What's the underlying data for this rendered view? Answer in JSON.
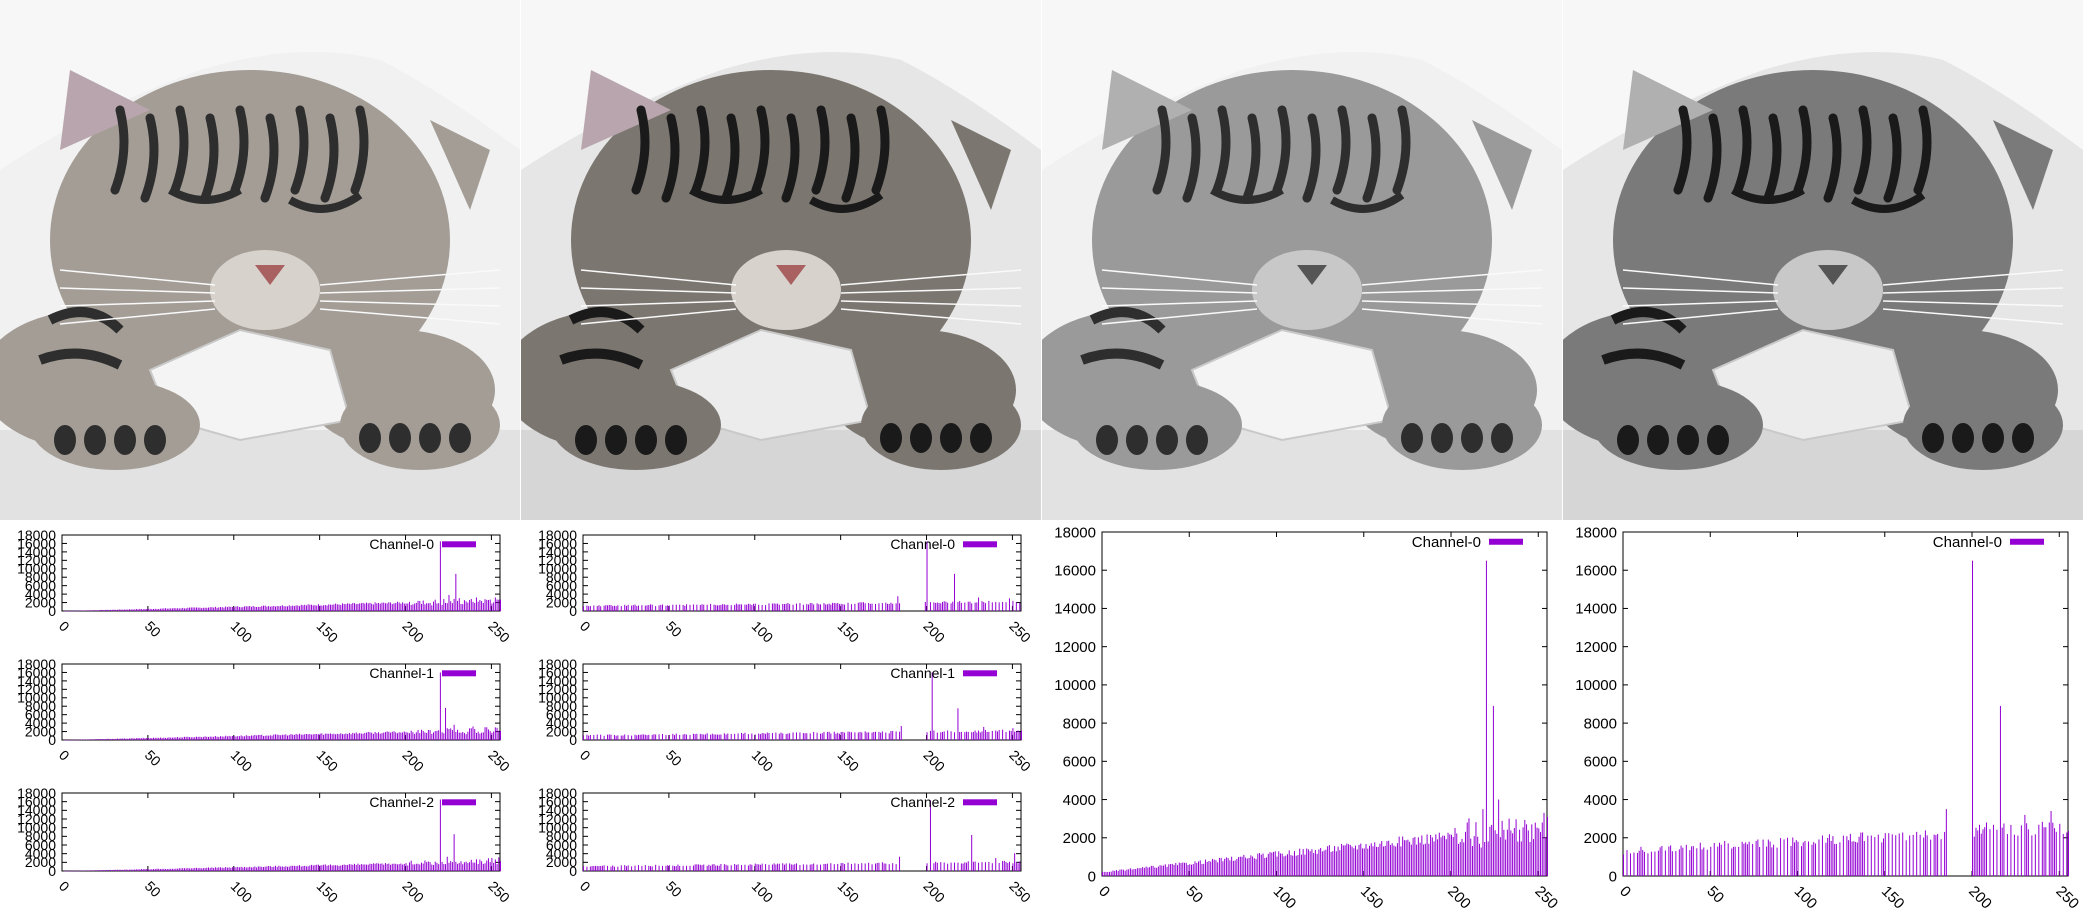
{
  "colors": {
    "bar": "#9400d3",
    "frame": "#000000",
    "background": "#ffffff"
  },
  "images": [
    {
      "name": "kitten-photo-original",
      "mode": "color"
    },
    {
      "name": "kitten-photo-equalized",
      "mode": "color-contrast"
    },
    {
      "name": "kitten-photo-grayscale",
      "mode": "gray"
    },
    {
      "name": "kitten-photo-grayscale-equalized",
      "mode": "gray-contrast"
    }
  ],
  "chart_data": [
    {
      "type": "bar",
      "legend": "Channel-0",
      "legend_position": "top-right",
      "xlim": [
        0,
        255
      ],
      "ylim": [
        0,
        18000
      ],
      "xticks": [
        "0",
        "50",
        "100",
        "150",
        "200",
        "250"
      ],
      "yticks": [
        "0",
        "2000",
        "4000",
        "6000",
        "8000",
        "10000",
        "12000",
        "14000",
        "16000",
        "18000"
      ],
      "profile": "smooth",
      "ramp": {
        "start": 0,
        "end": 2500
      },
      "spikes": [
        {
          "x": 220,
          "y": 16500
        },
        {
          "x": 229,
          "y": 8800
        },
        {
          "x": 225,
          "y": 3800
        },
        {
          "x": 243,
          "y": 2600
        },
        {
          "x": 249,
          "y": 2700
        }
      ]
    },
    {
      "type": "bar",
      "legend": "Channel-1",
      "legend_position": "top-right",
      "xlim": [
        0,
        255
      ],
      "ylim": [
        0,
        18000
      ],
      "xticks": [
        "0",
        "50",
        "100",
        "150",
        "200",
        "250"
      ],
      "yticks": [
        "0",
        "2000",
        "4000",
        "6000",
        "8000",
        "10000",
        "12000",
        "14000",
        "16000",
        "18000"
      ],
      "profile": "smooth",
      "ramp": {
        "start": 0,
        "end": 2400
      },
      "spikes": [
        {
          "x": 220,
          "y": 16000
        },
        {
          "x": 223,
          "y": 7600
        },
        {
          "x": 228,
          "y": 3600
        },
        {
          "x": 240,
          "y": 2600
        },
        {
          "x": 248,
          "y": 2500
        }
      ]
    },
    {
      "type": "bar",
      "legend": "Channel-2",
      "legend_position": "top-right",
      "xlim": [
        0,
        255
      ],
      "ylim": [
        0,
        18000
      ],
      "xticks": [
        "0",
        "50",
        "100",
        "150",
        "200",
        "250"
      ],
      "yticks": [
        "0",
        "2000",
        "4000",
        "6000",
        "8000",
        "10000",
        "12000",
        "14000",
        "16000",
        "18000"
      ],
      "profile": "smooth",
      "ramp": {
        "start": 0,
        "end": 2200
      },
      "spikes": [
        {
          "x": 220,
          "y": 16500
        },
        {
          "x": 228,
          "y": 8500
        },
        {
          "x": 224,
          "y": 3300
        },
        {
          "x": 241,
          "y": 2700
        },
        {
          "x": 250,
          "y": 3000
        }
      ]
    },
    {
      "type": "bar",
      "legend": "Channel-0",
      "legend_position": "top-right",
      "xlim": [
        0,
        255
      ],
      "ylim": [
        0,
        18000
      ],
      "xticks": [
        "0",
        "50",
        "100",
        "150",
        "200",
        "250"
      ],
      "yticks": [
        "0",
        "2000",
        "4000",
        "6000",
        "8000",
        "10000",
        "12000",
        "14000",
        "16000",
        "18000"
      ],
      "profile": "sparse",
      "ramp": {
        "start": 1200,
        "end": 2200
      },
      "gap": [
        185,
        198
      ],
      "spikes": [
        {
          "x": 200,
          "y": 16500
        },
        {
          "x": 216,
          "y": 8800
        },
        {
          "x": 183,
          "y": 3500
        },
        {
          "x": 230,
          "y": 3200
        },
        {
          "x": 248,
          "y": 3000
        }
      ]
    },
    {
      "type": "bar",
      "legend": "Channel-1",
      "legend_position": "top-right",
      "xlim": [
        0,
        255
      ],
      "ylim": [
        0,
        18000
      ],
      "xticks": [
        "0",
        "50",
        "100",
        "150",
        "200",
        "250"
      ],
      "yticks": [
        "0",
        "2000",
        "4000",
        "6000",
        "8000",
        "10000",
        "12000",
        "14000",
        "16000",
        "18000"
      ],
      "profile": "sparse",
      "ramp": {
        "start": 1100,
        "end": 2200
      },
      "gap": [
        186,
        199
      ],
      "spikes": [
        {
          "x": 203,
          "y": 16000
        },
        {
          "x": 218,
          "y": 7500
        },
        {
          "x": 185,
          "y": 3300
        },
        {
          "x": 233,
          "y": 3100
        },
        {
          "x": 250,
          "y": 2800
        }
      ]
    },
    {
      "type": "bar",
      "legend": "Channel-2",
      "legend_position": "top-right",
      "xlim": [
        0,
        255
      ],
      "ylim": [
        0,
        18000
      ],
      "xticks": [
        "0",
        "50",
        "100",
        "150",
        "200",
        "250"
      ],
      "yticks": [
        "0",
        "2000",
        "4000",
        "6000",
        "8000",
        "10000",
        "12000",
        "14000",
        "16000",
        "18000"
      ],
      "profile": "sparse",
      "ramp": {
        "start": 1100,
        "end": 2100
      },
      "gap": [
        186,
        199
      ],
      "spikes": [
        {
          "x": 202,
          "y": 16300
        },
        {
          "x": 226,
          "y": 8300
        },
        {
          "x": 184,
          "y": 3300
        },
        {
          "x": 240,
          "y": 3000
        },
        {
          "x": 251,
          "y": 4100
        }
      ]
    },
    {
      "type": "bar",
      "legend": "Channel-0",
      "legend_position": "top-right",
      "xlim": [
        0,
        255
      ],
      "ylim": [
        0,
        18000
      ],
      "xticks": [
        "0",
        "50",
        "100",
        "150",
        "200",
        "250"
      ],
      "yticks": [
        "0",
        "2000",
        "4000",
        "6000",
        "8000",
        "10000",
        "12000",
        "14000",
        "16000",
        "18000"
      ],
      "profile": "smooth",
      "ramp": {
        "start": 200,
        "end": 2600
      },
      "spikes": [
        {
          "x": 220,
          "y": 16500
        },
        {
          "x": 224,
          "y": 8900
        },
        {
          "x": 227,
          "y": 4000
        },
        {
          "x": 218,
          "y": 3500
        },
        {
          "x": 233,
          "y": 3000
        },
        {
          "x": 246,
          "y": 2700
        },
        {
          "x": 252,
          "y": 2800
        }
      ]
    },
    {
      "type": "bar",
      "legend": "Channel-0",
      "legend_position": "top-right",
      "xlim": [
        0,
        255
      ],
      "ylim": [
        0,
        18000
      ],
      "xticks": [
        "0",
        "50",
        "100",
        "150",
        "200",
        "250"
      ],
      "yticks": [
        "0",
        "2000",
        "4000",
        "6000",
        "8000",
        "10000",
        "12000",
        "14000",
        "16000",
        "18000"
      ],
      "profile": "sparse",
      "ramp": {
        "start": 1300,
        "end": 2600
      },
      "gap": [
        186,
        199
      ],
      "spikes": [
        {
          "x": 200,
          "y": 16500
        },
        {
          "x": 216,
          "y": 8900
        },
        {
          "x": 185,
          "y": 3500
        },
        {
          "x": 208,
          "y": 2800
        },
        {
          "x": 230,
          "y": 3200
        },
        {
          "x": 245,
          "y": 3400
        },
        {
          "x": 252,
          "y": 2200
        }
      ]
    }
  ]
}
